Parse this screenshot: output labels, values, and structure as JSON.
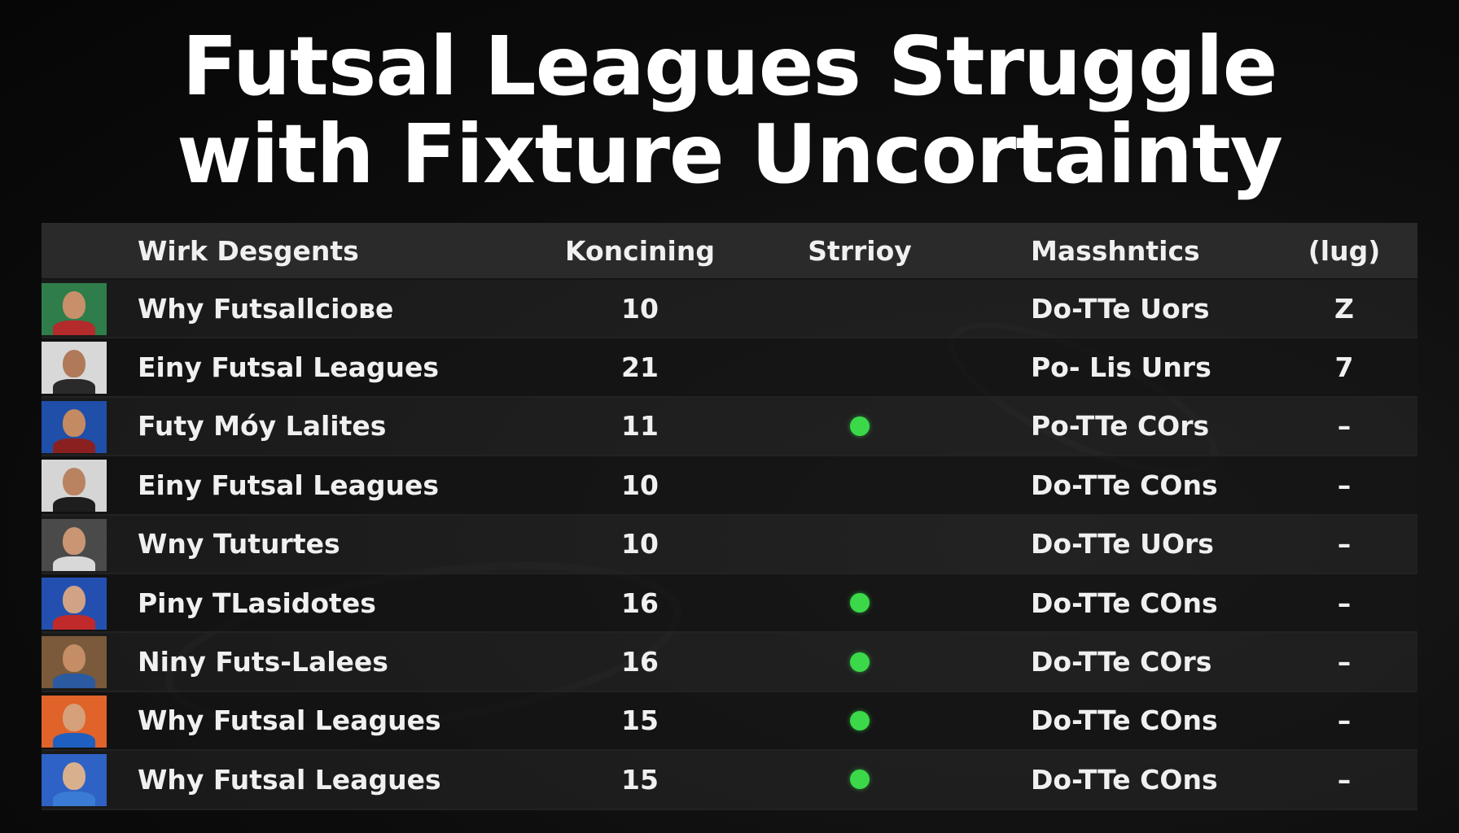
{
  "title": {
    "line1": "Futsal Leagues Struggle",
    "line2": "with Fixture Uncortainty"
  },
  "table": {
    "headers": [
      "Wirk Desgents",
      "Koncining",
      "Strrioy",
      "Masshntics",
      "(lug)"
    ],
    "rows": [
      {
        "name": "Why Futsallcioвe",
        "num": "10",
        "dot": false,
        "meta": "Do-TTe Uors",
        "last": "Z",
        "avatar_bg": "#2f7d4a",
        "avatar_skin": "#c8906a",
        "avatar_body": "#b32b2b"
      },
      {
        "name": "Einy Futsal Leagues",
        "num": "21",
        "dot": false,
        "meta": "Po- Lis Unrs",
        "last": "7",
        "avatar_bg": "#d8d8d8",
        "avatar_skin": "#b07a5a",
        "avatar_body": "#2a2a2a"
      },
      {
        "name": "Futy Móy Lalites",
        "num": "11",
        "dot": true,
        "meta": "Po-TTe COrs",
        "last": "–",
        "avatar_bg": "#1f4fa8",
        "avatar_skin": "#c48a62",
        "avatar_body": "#8a2020"
      },
      {
        "name": "Einy Futsal Leagues",
        "num": "10",
        "dot": false,
        "meta": "Do-TTe COns",
        "last": "–",
        "avatar_bg": "#d5d5d5",
        "avatar_skin": "#b98362",
        "avatar_body": "#1e1e1e"
      },
      {
        "name": "Wny Tuturtes",
        "num": "10",
        "dot": false,
        "meta": "Do-TTe UOrs",
        "last": "–",
        "avatar_bg": "#4a4a4a",
        "avatar_skin": "#c99573",
        "avatar_body": "#d8d8d8"
      },
      {
        "name": "Piny TLasidotes",
        "num": "16",
        "dot": true,
        "meta": "Do-TTe COns",
        "last": "–",
        "avatar_bg": "#2350b0",
        "avatar_skin": "#d1a284",
        "avatar_body": "#c02a2a"
      },
      {
        "name": "Niny Futs-Lalees",
        "num": "16",
        "dot": true,
        "meta": "Do-TTe COrs",
        "last": "–",
        "avatar_bg": "#7a5a3a",
        "avatar_skin": "#c58d66",
        "avatar_body": "#2b5aa0"
      },
      {
        "name": "Why Futsal Leagues",
        "num": "15",
        "dot": true,
        "meta": "Do-TTe COns",
        "last": "–",
        "avatar_bg": "#e0632a",
        "avatar_skin": "#d6a07a",
        "avatar_body": "#1f5fc0"
      },
      {
        "name": "Why Futsal Leagues",
        "num": "15",
        "dot": true,
        "meta": "Do-TTe COns",
        "last": "–",
        "avatar_bg": "#2e62c4",
        "avatar_skin": "#d9b08e",
        "avatar_body": "#3a7bd5"
      }
    ]
  },
  "colors": {
    "status_dot": "#3bd94a",
    "header_bg": "#2a2a2a"
  }
}
